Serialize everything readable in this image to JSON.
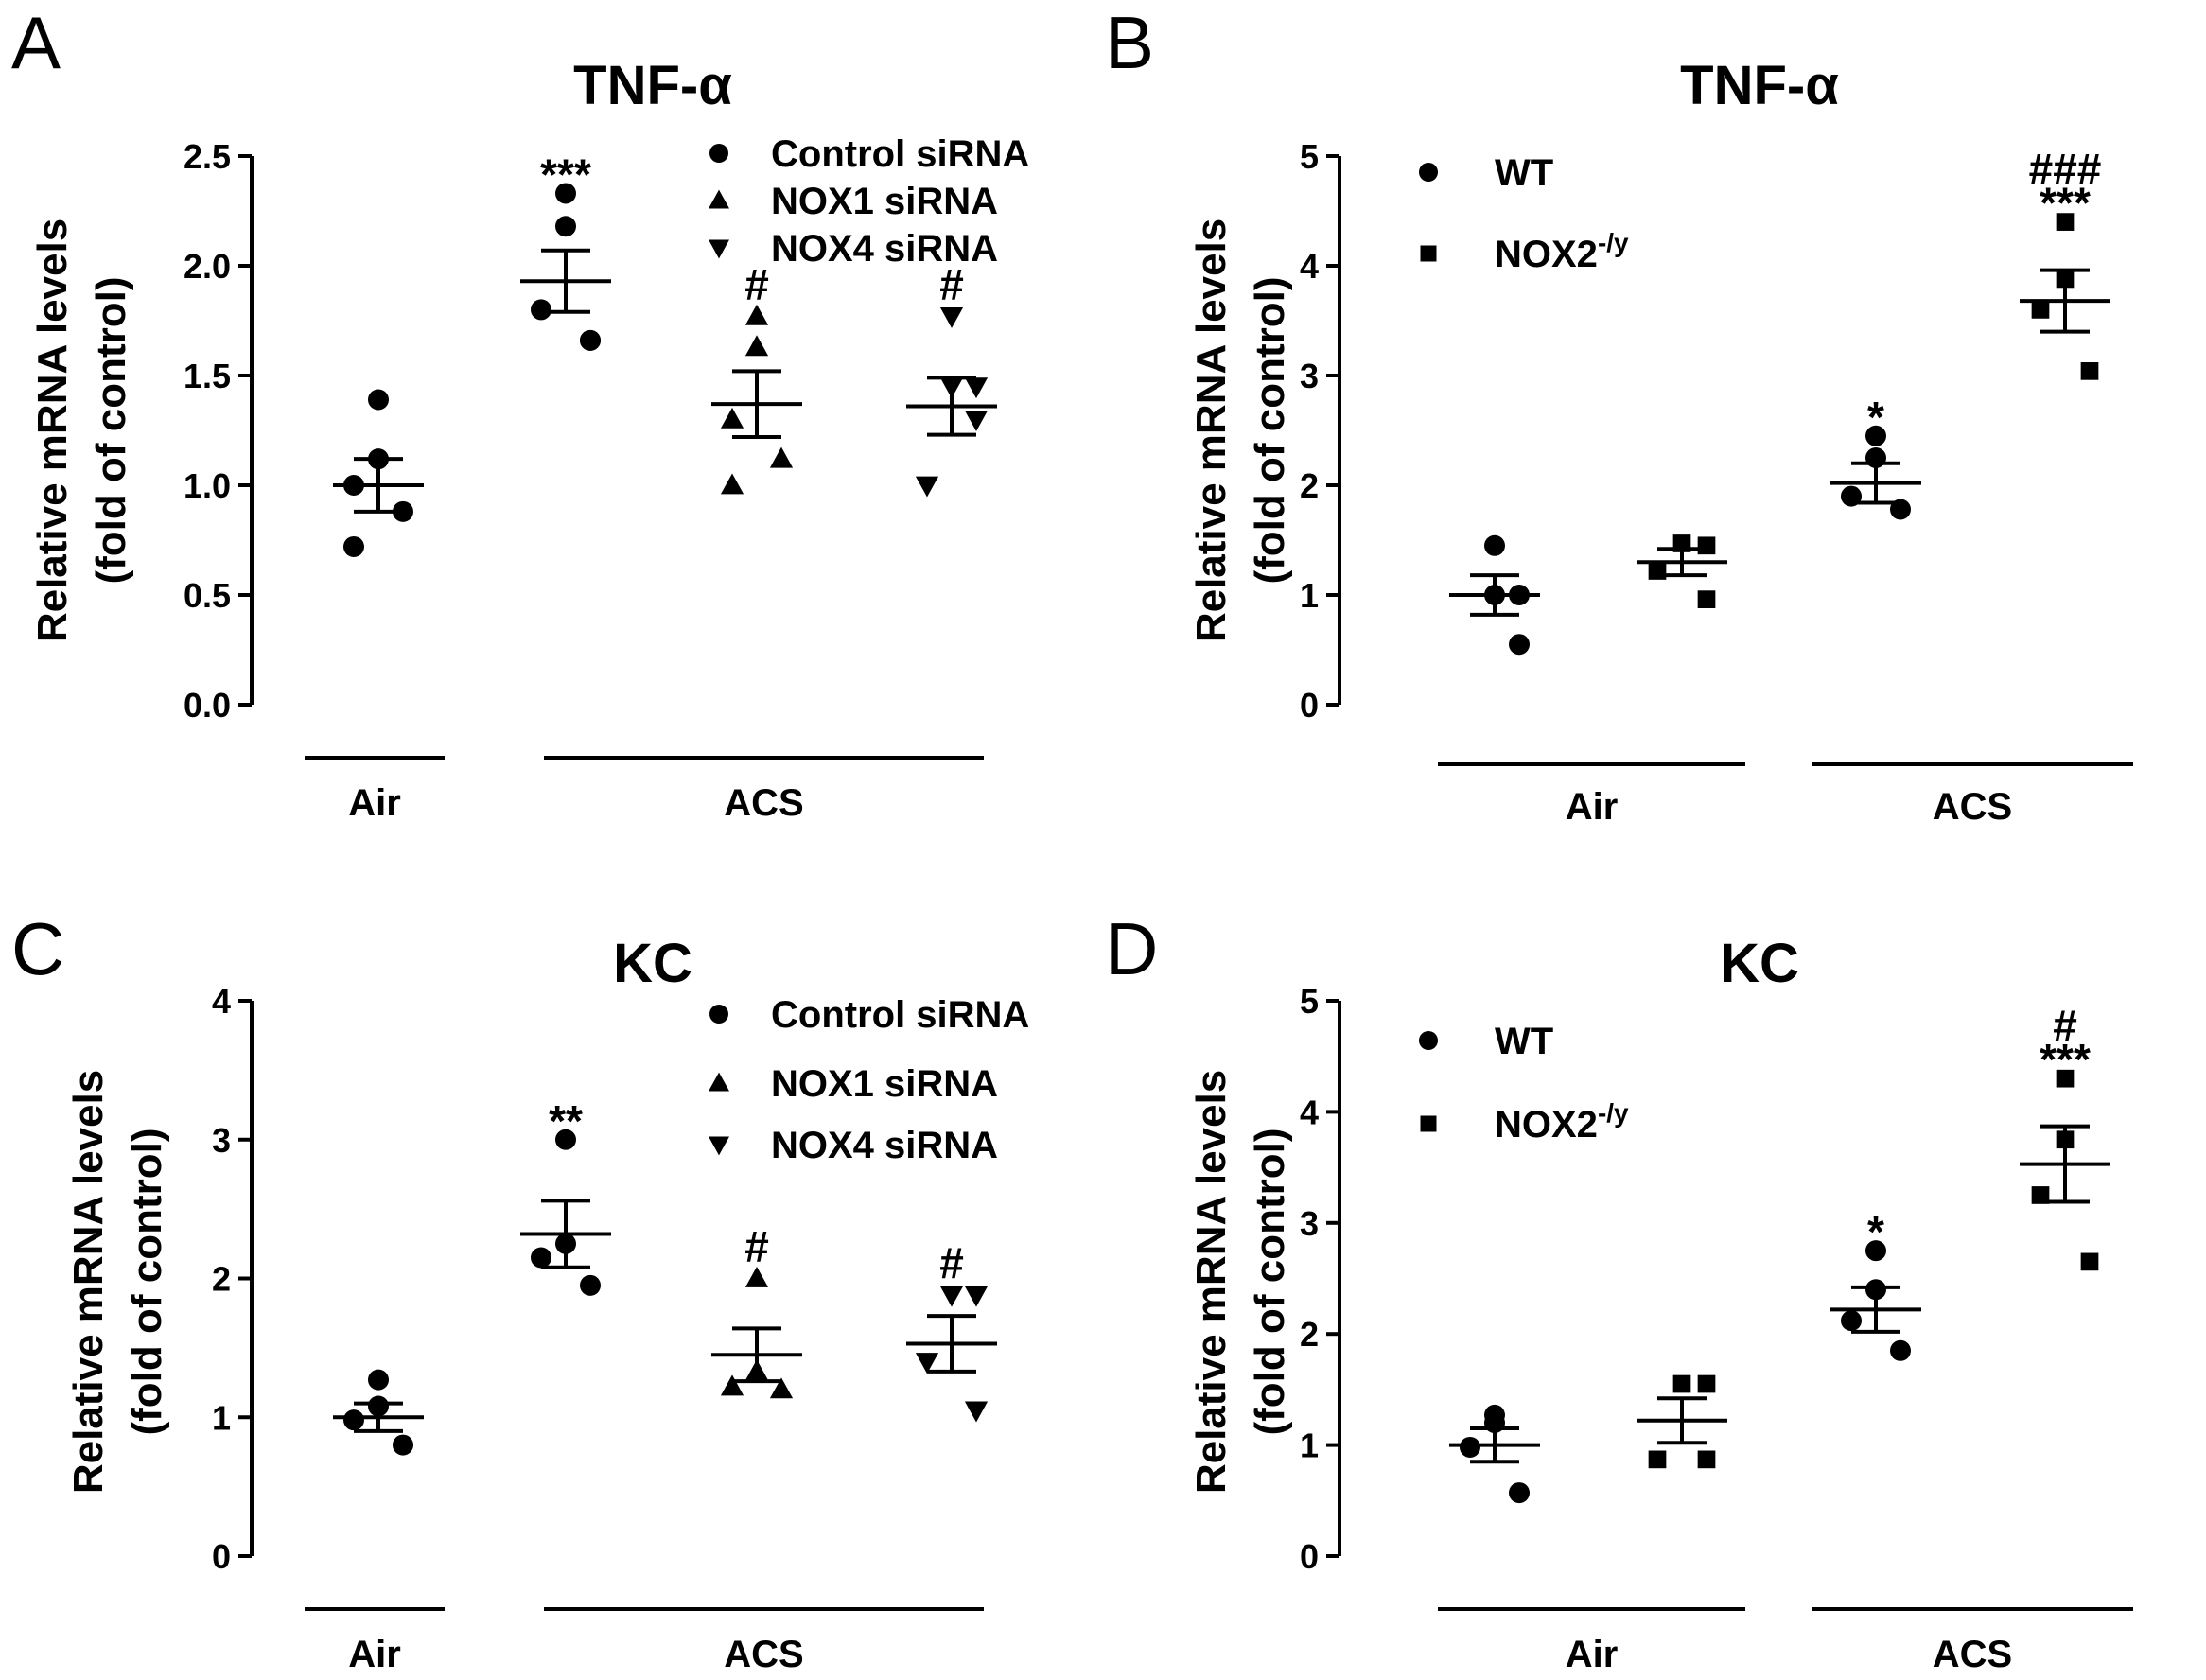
{
  "chart_data": [
    {
      "panel": "A",
      "type": "scatter",
      "title": "TNF-α",
      "ylabel": [
        "Relative mRNA levels",
        "(fold of control)"
      ],
      "ylim": [
        0,
        2.5
      ],
      "yticks": [
        "0.0",
        "0.5",
        "1.0",
        "1.5",
        "2.0",
        "2.5"
      ],
      "tick_values": [
        0,
        0.5,
        1.0,
        1.5,
        2.0,
        2.5
      ],
      "legend": [
        {
          "marker": "circle",
          "label": "Control siRNA"
        },
        {
          "marker": "triangle-up",
          "label": "NOX1 siRNA"
        },
        {
          "marker": "triangle-down",
          "label": "NOX4 siRNA"
        }
      ],
      "groups": [
        {
          "label": "Air",
          "positions": [
            1
          ]
        },
        {
          "label": "ACS",
          "positions": [
            2,
            3,
            4
          ]
        }
      ],
      "series": [
        {
          "position": 1,
          "marker": "circle",
          "points": [
            1.39,
            1.12,
            1.0,
            0.88,
            0.72
          ],
          "mean": 1.0,
          "sem": 0.12,
          "annotation": ""
        },
        {
          "position": 2,
          "marker": "circle",
          "points": [
            2.33,
            2.18,
            1.8,
            1.66,
            1.66
          ],
          "mean": 1.93,
          "sem": 0.14,
          "annotation": "***"
        },
        {
          "position": 3,
          "marker": "triangle-up",
          "points": [
            1.77,
            1.63,
            1.3,
            1.12,
            1.0
          ],
          "mean": 1.37,
          "sem": 0.15,
          "annotation": "#"
        },
        {
          "position": 4,
          "marker": "triangle-down",
          "points": [
            1.77,
            1.45,
            1.45,
            1.3,
            1.0
          ],
          "mean": 1.36,
          "sem": 0.13,
          "annotation": "#"
        }
      ]
    },
    {
      "panel": "B",
      "type": "scatter",
      "title": "TNF-α",
      "ylabel": [
        "Relative mRNA levels",
        "(fold of control)"
      ],
      "ylim": [
        0,
        5
      ],
      "yticks": [
        "0",
        "1",
        "2",
        "3",
        "4",
        "5"
      ],
      "tick_values": [
        0,
        1,
        2,
        3,
        4,
        5
      ],
      "legend": [
        {
          "marker": "circle",
          "label": "WT"
        },
        {
          "marker": "square",
          "label": "NOX2",
          "sup": "-/y"
        }
      ],
      "groups": [
        {
          "label": "Air",
          "positions": [
            1,
            2
          ]
        },
        {
          "label": "ACS",
          "positions": [
            3,
            4
          ]
        }
      ],
      "series": [
        {
          "position": 1,
          "marker": "circle",
          "points": [
            1.45,
            1.0,
            1.0,
            0.55
          ],
          "mean": 1.0,
          "sem": 0.18,
          "annotation": ""
        },
        {
          "position": 2,
          "marker": "square",
          "points": [
            1.47,
            1.45,
            1.22,
            0.96
          ],
          "mean": 1.3,
          "sem": 0.12,
          "annotation": ""
        },
        {
          "position": 3,
          "marker": "circle",
          "points": [
            2.45,
            2.25,
            1.9,
            1.78
          ],
          "mean": 2.02,
          "sem": 0.18,
          "annotation": "*"
        },
        {
          "position": 4,
          "marker": "square",
          "points": [
            4.4,
            3.88,
            3.6,
            3.04
          ],
          "mean": 3.68,
          "sem": 0.28,
          "annotation": "***",
          "annotation2": "###"
        }
      ]
    },
    {
      "panel": "C",
      "type": "scatter",
      "title": "KC",
      "ylabel": [
        "Relative mRNA levels",
        "(fold of control)"
      ],
      "ylim": [
        0,
        4
      ],
      "yticks": [
        "0",
        "1",
        "2",
        "3",
        "4"
      ],
      "tick_values": [
        0,
        1,
        2,
        3,
        4
      ],
      "legend": [
        {
          "marker": "circle",
          "label": "Control siRNA"
        },
        {
          "marker": "triangle-up",
          "label": "NOX1 siRNA"
        },
        {
          "marker": "triangle-down",
          "label": "NOX4 siRNA"
        }
      ],
      "groups": [
        {
          "label": "Air",
          "positions": [
            1
          ]
        },
        {
          "label": "ACS",
          "positions": [
            2,
            3,
            4
          ]
        }
      ],
      "series": [
        {
          "position": 1,
          "marker": "circle",
          "points": [
            1.27,
            1.08,
            0.98,
            0.8
          ],
          "mean": 1.0,
          "sem": 0.1,
          "annotation": ""
        },
        {
          "position": 2,
          "marker": "circle",
          "points": [
            3.0,
            2.25,
            2.15,
            1.95
          ],
          "mean": 2.32,
          "sem": 0.24,
          "annotation": "**"
        },
        {
          "position": 3,
          "marker": "triangle-up",
          "points": [
            2.0,
            1.33,
            1.22,
            1.2
          ],
          "mean": 1.45,
          "sem": 0.19,
          "annotation": "#"
        },
        {
          "position": 4,
          "marker": "triangle-down",
          "points": [
            1.88,
            1.88,
            1.4,
            1.05
          ],
          "mean": 1.53,
          "sem": 0.2,
          "annotation": "#"
        }
      ]
    },
    {
      "panel": "D",
      "type": "scatter",
      "title": "KC",
      "ylabel": [
        "Relative mRNA levels",
        "(fold of control)"
      ],
      "ylim": [
        0,
        5
      ],
      "yticks": [
        "0",
        "1",
        "2",
        "3",
        "4",
        "5"
      ],
      "tick_values": [
        0,
        1,
        2,
        3,
        4,
        5
      ],
      "legend": [
        {
          "marker": "circle",
          "label": "WT"
        },
        {
          "marker": "square",
          "label": "NOX2",
          "sup": "-/y"
        }
      ],
      "groups": [
        {
          "label": "Air",
          "positions": [
            1,
            2
          ]
        },
        {
          "label": "ACS",
          "positions": [
            3,
            4
          ]
        }
      ],
      "series": [
        {
          "position": 1,
          "marker": "circle",
          "points": [
            1.27,
            1.2,
            0.98,
            0.57
          ],
          "mean": 1.0,
          "sem": 0.15,
          "annotation": ""
        },
        {
          "position": 2,
          "marker": "square",
          "points": [
            1.55,
            1.55,
            0.87,
            0.87
          ],
          "mean": 1.22,
          "sem": 0.2,
          "annotation": ""
        },
        {
          "position": 3,
          "marker": "circle",
          "points": [
            2.75,
            2.4,
            2.12,
            1.85
          ],
          "mean": 2.22,
          "sem": 0.2,
          "annotation": "*"
        },
        {
          "position": 4,
          "marker": "square",
          "points": [
            4.3,
            3.75,
            3.25,
            2.65
          ],
          "mean": 3.53,
          "sem": 0.34,
          "annotation": "***",
          "annotation2": "#"
        }
      ]
    }
  ]
}
